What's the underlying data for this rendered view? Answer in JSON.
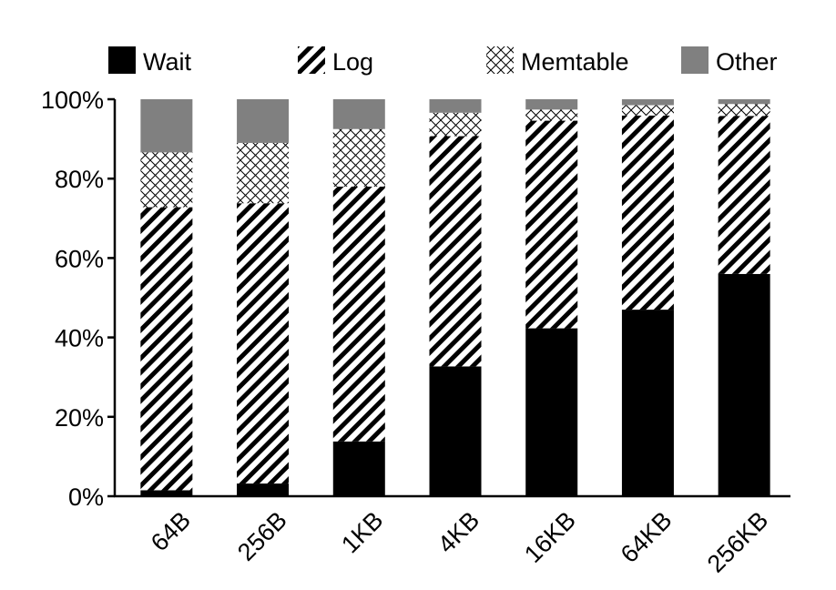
{
  "chart_data": {
    "type": "bar",
    "stacked": true,
    "categories": [
      "64B",
      "256B",
      "1KB",
      "4KB",
      "16KB",
      "64KB",
      "256KB"
    ],
    "series": [
      {
        "name": "Wait",
        "pattern": "solid",
        "color": "#000000",
        "values": [
          1.5,
          3.2,
          13.8,
          32.7,
          42.3,
          47.0,
          56.0
        ]
      },
      {
        "name": "Log",
        "pattern": "diagonal",
        "color": "#000000",
        "values": [
          71.3,
          70.6,
          64.2,
          58.0,
          52.3,
          48.9,
          39.8
        ]
      },
      {
        "name": "Memtable",
        "pattern": "crosshatch",
        "color": "#000000",
        "values": [
          13.8,
          15.2,
          14.5,
          5.9,
          2.8,
          2.6,
          3.0
        ]
      },
      {
        "name": "Other",
        "pattern": "solid",
        "color": "#808080",
        "values": [
          13.4,
          11.0,
          7.5,
          3.4,
          2.6,
          1.5,
          1.2
        ]
      }
    ],
    "y_ticks": [
      "0%",
      "20%",
      "40%",
      "60%",
      "80%",
      "100%"
    ],
    "ylim": [
      0,
      100
    ],
    "legend_position": "top",
    "grid": false
  }
}
